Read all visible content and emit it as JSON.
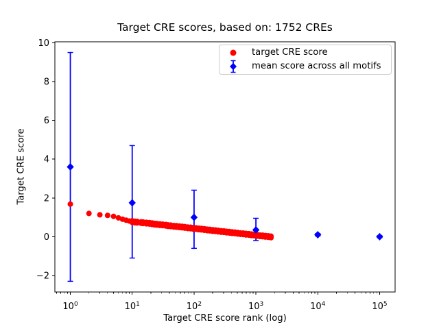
{
  "figure": {
    "title": "Target CRE scores, based on: 1752 CREs",
    "background": "#ffffff"
  },
  "axes": {
    "xlabel": "Target CRE score rank (log)",
    "ylabel": "Target CRE score",
    "xscale": "log",
    "xlim_log10": [
      -0.25,
      5.25
    ],
    "ylim": [
      -2.85,
      10.05
    ],
    "yticks": [
      {
        "v": -2,
        "label": "−2"
      },
      {
        "v": 0,
        "label": "0"
      },
      {
        "v": 2,
        "label": "2"
      },
      {
        "v": 4,
        "label": "4"
      },
      {
        "v": 6,
        "label": "6"
      },
      {
        "v": 8,
        "label": "8"
      },
      {
        "v": 10,
        "label": "10"
      }
    ],
    "xticks": [
      {
        "exp": 0,
        "base": "10"
      },
      {
        "exp": 1,
        "base": "10"
      },
      {
        "exp": 2,
        "base": "10"
      },
      {
        "exp": 3,
        "base": "10"
      },
      {
        "exp": 4,
        "base": "10"
      },
      {
        "exp": 5,
        "base": "10"
      }
    ]
  },
  "legend": {
    "entries": [
      {
        "label": "target CRE score",
        "marker": "circle",
        "color": "#ff0000"
      },
      {
        "label": "mean score across all motifs",
        "marker": "diamond-errorbar",
        "color": "#0000ff"
      }
    ]
  },
  "colors": {
    "target": "#ff0000",
    "mean": "#0000ff",
    "spine": "#000000",
    "text": "#000000"
  },
  "chart_data": {
    "type": "scatter",
    "title": "Target CRE scores, based on: 1752 CREs",
    "xlabel": "Target CRE score rank (log)",
    "ylabel": "Target CRE score",
    "n_cres": 1752,
    "series": [
      {
        "name": "target CRE score",
        "marker": "circle",
        "color": "#ff0000",
        "points": [
          [
            1,
            1.68
          ],
          [
            2,
            1.2
          ],
          [
            3,
            1.13
          ],
          [
            4,
            1.1
          ],
          [
            5,
            1.05
          ],
          [
            6,
            0.97
          ],
          [
            7,
            0.9
          ],
          [
            8,
            0.85
          ],
          [
            9,
            0.81
          ]
        ],
        "band_rank_hi_lo": [
          [
            10,
            0.82,
            0.74
          ],
          [
            11,
            0.8,
            0.72
          ],
          [
            12,
            0.79,
            0.71
          ],
          [
            14,
            0.77,
            0.69
          ],
          [
            15,
            0.76,
            0.68
          ],
          [
            17,
            0.74,
            0.66
          ],
          [
            19,
            0.73,
            0.65
          ],
          [
            21,
            0.71,
            0.63
          ],
          [
            23,
            0.69,
            0.61
          ],
          [
            25,
            0.68,
            0.6
          ],
          [
            28,
            0.66,
            0.58
          ],
          [
            31,
            0.65,
            0.57
          ],
          [
            35,
            0.63,
            0.55
          ],
          [
            38,
            0.61,
            0.53
          ],
          [
            42,
            0.6,
            0.52
          ],
          [
            47,
            0.58,
            0.5
          ],
          [
            52,
            0.57,
            0.49
          ],
          [
            58,
            0.55,
            0.47
          ],
          [
            64,
            0.54,
            0.46
          ],
          [
            71,
            0.52,
            0.44
          ],
          [
            79,
            0.5,
            0.42
          ],
          [
            88,
            0.49,
            0.41
          ],
          [
            97,
            0.47,
            0.39
          ],
          [
            108,
            0.46,
            0.38
          ],
          [
            119,
            0.44,
            0.36
          ],
          [
            132,
            0.43,
            0.35
          ],
          [
            147,
            0.41,
            0.33
          ],
          [
            163,
            0.39,
            0.31
          ],
          [
            180,
            0.38,
            0.3
          ],
          [
            200,
            0.36,
            0.28
          ],
          [
            222,
            0.35,
            0.27
          ],
          [
            246,
            0.33,
            0.25
          ],
          [
            273,
            0.31,
            0.23
          ],
          [
            303,
            0.3,
            0.22
          ],
          [
            335,
            0.28,
            0.2
          ],
          [
            372,
            0.27,
            0.19
          ],
          [
            412,
            0.25,
            0.17
          ],
          [
            457,
            0.24,
            0.16
          ],
          [
            507,
            0.22,
            0.14
          ],
          [
            562,
            0.2,
            0.12
          ],
          [
            623,
            0.19,
            0.11
          ],
          [
            691,
            0.17,
            0.09
          ],
          [
            767,
            0.16,
            0.08
          ],
          [
            850,
            0.14,
            0.06
          ],
          [
            943,
            0.13,
            0.05
          ],
          [
            1045,
            0.11,
            0.03
          ],
          [
            1159,
            0.09,
            0.01
          ],
          [
            1285,
            0.08,
            0.0
          ],
          [
            1425,
            0.06,
            -0.02
          ],
          [
            1580,
            0.05,
            -0.03
          ],
          [
            1752,
            0.03,
            -0.05
          ]
        ]
      },
      {
        "name": "mean score across all motifs",
        "marker": "diamond",
        "color": "#0000ff",
        "points_with_error": [
          {
            "rank": 1,
            "mean": 3.6,
            "lo": -2.3,
            "hi": 9.5
          },
          {
            "rank": 10,
            "mean": 1.75,
            "lo": -1.1,
            "hi": 4.7
          },
          {
            "rank": 100,
            "mean": 1.0,
            "lo": -0.6,
            "hi": 2.4
          },
          {
            "rank": 1000,
            "mean": 0.35,
            "lo": -0.2,
            "hi": 0.95
          },
          {
            "rank": 10000,
            "mean": 0.1,
            "lo": 0.04,
            "hi": 0.16
          },
          {
            "rank": 100000,
            "mean": 0.0,
            "lo": -0.05,
            "hi": 0.05
          }
        ]
      }
    ]
  }
}
